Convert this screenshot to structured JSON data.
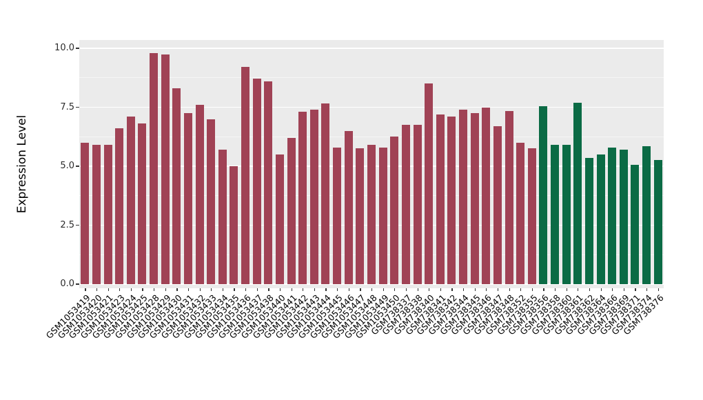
{
  "figure": {
    "background": "#FFFFFF"
  },
  "chart_data": {
    "type": "bar",
    "title": "",
    "xlabel": "",
    "ylabel": "Expression Level",
    "ylim": [
      0,
      10.3
    ],
    "yticks": [
      0.0,
      2.5,
      5.0,
      7.5,
      10.0
    ],
    "ytick_labels": [
      "0.0",
      "2.5",
      "5.0",
      "7.5",
      "10.0"
    ],
    "grid": true,
    "legend_position": "none",
    "plot_background": "#EBEBEB",
    "gridline_color": "#FFFFFF",
    "categories": [
      "GSM1053419",
      "GSM1053420",
      "GSM1053421",
      "GSM1053423",
      "GSM1053424",
      "GSM1053425",
      "GSM1053428",
      "GSM1053429",
      "GSM1053430",
      "GSM1053431",
      "GSM1053432",
      "GSM1053433",
      "GSM1053434",
      "GSM1053435",
      "GSM1053436",
      "GSM1053437",
      "GSM1053438",
      "GSM1053440",
      "GSM1053441",
      "GSM1053442",
      "GSM1053443",
      "GSM1053444",
      "GSM1053445",
      "GSM1053446",
      "GSM1053447",
      "GSM1053448",
      "GSM1053449",
      "GSM1053450",
      "GSM738337",
      "GSM738338",
      "GSM738340",
      "GSM738341",
      "GSM738342",
      "GSM738344",
      "GSM738345",
      "GSM738346",
      "GSM738347",
      "GSM738348",
      "GSM738352",
      "GSM738355",
      "GSM738356",
      "GSM738358",
      "GSM738360",
      "GSM738361",
      "GSM738362",
      "GSM738364",
      "GSM738366",
      "GSM738369",
      "GSM738371",
      "GSM738374",
      "GSM738376"
    ],
    "values": [
      6.0,
      5.9,
      5.9,
      6.6,
      7.1,
      6.8,
      9.8,
      9.75,
      8.3,
      7.25,
      7.6,
      7.0,
      5.7,
      5.0,
      9.2,
      8.7,
      8.6,
      5.5,
      6.2,
      7.3,
      7.4,
      7.65,
      5.8,
      6.5,
      5.75,
      5.9,
      5.8,
      6.25,
      6.75,
      6.75,
      8.5,
      7.2,
      7.1,
      7.4,
      7.25,
      7.5,
      6.7,
      7.35,
      6.0,
      5.75,
      7.55,
      5.9,
      5.9,
      7.7,
      5.35,
      5.5,
      5.8,
      5.7,
      5.05,
      5.85,
      5.25
    ],
    "bar_groups": [
      "maroon",
      "maroon",
      "maroon",
      "maroon",
      "maroon",
      "maroon",
      "maroon",
      "maroon",
      "maroon",
      "maroon",
      "maroon",
      "maroon",
      "maroon",
      "maroon",
      "maroon",
      "maroon",
      "maroon",
      "maroon",
      "maroon",
      "maroon",
      "maroon",
      "maroon",
      "maroon",
      "maroon",
      "maroon",
      "maroon",
      "maroon",
      "maroon",
      "maroon",
      "maroon",
      "maroon",
      "maroon",
      "maroon",
      "maroon",
      "maroon",
      "maroon",
      "maroon",
      "maroon",
      "maroon",
      "maroon",
      "green",
      "green",
      "green",
      "green",
      "green",
      "green",
      "green",
      "green",
      "green",
      "green",
      "green"
    ],
    "group_colors": {
      "maroon": "#A04255",
      "green": "#0B6B45"
    },
    "minor_gridlines": [
      1.25,
      3.75,
      6.25,
      8.75
    ]
  }
}
